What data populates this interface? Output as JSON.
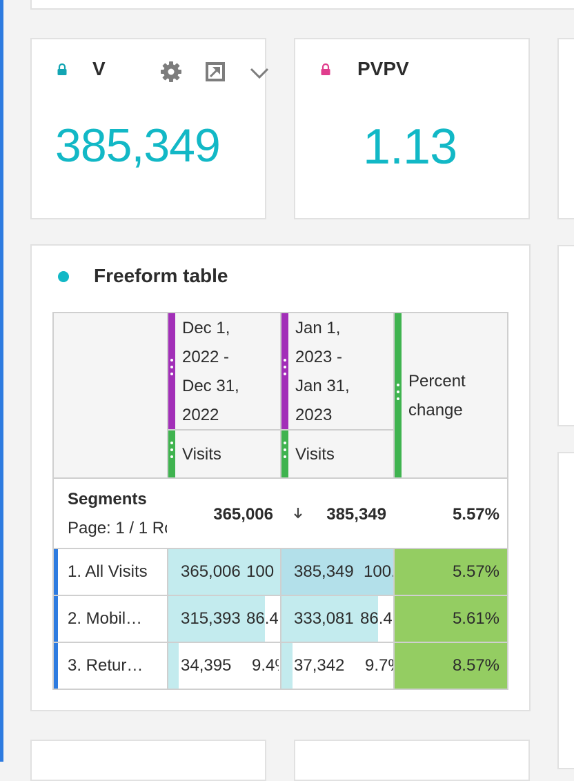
{
  "kpis": [
    {
      "title": "V",
      "value": "385,349",
      "lock_color": "#13a5b3"
    },
    {
      "title": "PVPV",
      "value": "1.13",
      "lock_color": "#e03d8d"
    }
  ],
  "toolbar": {
    "settings_icon": "gear-icon",
    "expand_icon": "expand-icon",
    "menu_icon": "chevron-down-icon"
  },
  "freeform": {
    "title": "Freeform table",
    "columns": [
      {
        "date_range": [
          "Dec 1,",
          "2022 -",
          "Dec 31,",
          "2022"
        ],
        "metric": "Visits"
      },
      {
        "date_range": [
          "Jan 1,",
          "2023 -",
          "Jan 31,",
          "2023"
        ],
        "metric": "Visits"
      },
      {
        "label": [
          "Percent",
          "change"
        ]
      }
    ],
    "summary": {
      "dimension": "Segments",
      "pagination": "Page: 1 / 1 Rc",
      "col1_total": "365,006",
      "col2_total": "385,349",
      "change_total": "5.57%"
    },
    "rows": [
      {
        "label": "1.  All Visits",
        "v1": "365,006",
        "p1": "100",
        "f1": 1.0,
        "v2": "385,349",
        "p2": "100.",
        "f2": 1.0,
        "change": "5.57%"
      },
      {
        "label": "2.  Mobil…",
        "v1": "315,393",
        "p1": "86.4",
        "f1": 0.864,
        "v2": "333,081",
        "p2": "86.4",
        "f2": 0.864,
        "change": "5.61%"
      },
      {
        "label": "3.  Retur…",
        "v1": "34,395",
        "p1": "9.4%",
        "f1": 0.094,
        "v2": "37,342",
        "p2": "9.7%",
        "f2": 0.097,
        "change": "8.57%"
      }
    ]
  },
  "colors": {
    "accent": "#12b8c6",
    "date_bar": "#a22fb8",
    "metric_bar": "#3fb34f",
    "row_indicator": "#2d7be0",
    "cell_fill_light": "#c3ebee",
    "cell_fill_dark": "#b3e0ea",
    "change_fill": "#94cd62"
  }
}
